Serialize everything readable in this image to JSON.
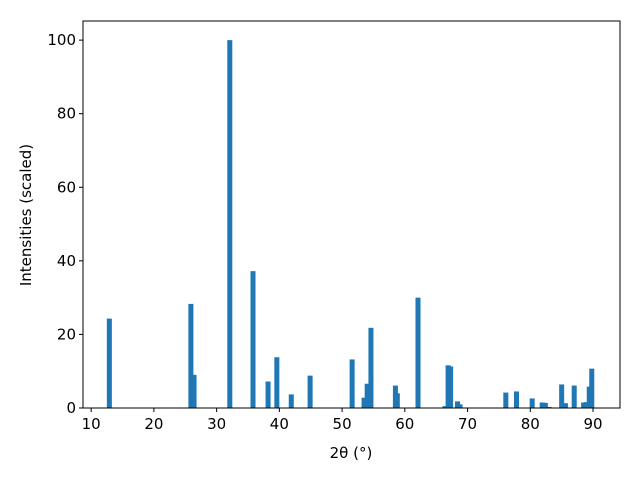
{
  "chart_data": {
    "type": "bar",
    "xlabel": "2θ (°)",
    "ylabel": "Intensities (scaled)",
    "x": [
      12.9,
      25.9,
      26.4,
      32.1,
      35.8,
      38.2,
      39.6,
      41.9,
      44.9,
      51.6,
      53.5,
      54.0,
      54.6,
      58.5,
      58.8,
      62.1,
      66.4,
      66.9,
      67.3,
      68.4,
      68.8,
      76.1,
      77.8,
      80.3,
      81.9,
      82.4,
      83.0,
      85.0,
      85.6,
      87.0,
      88.5,
      89.0,
      89.4,
      89.8
    ],
    "values": [
      24.3,
      28.3,
      9,
      100,
      37.2,
      7.2,
      13.8,
      3.7,
      8.8,
      13.2,
      2.8,
      6.6,
      21.8,
      6.1,
      4,
      30.0,
      0.5,
      11.6,
      11.3,
      1.8,
      1.0,
      4.2,
      4.5,
      2.6,
      1.5,
      1.4,
      0.3,
      6.4,
      1.3,
      6.1,
      1.5,
      1.6,
      5.8,
      10.7
    ],
    "color": "#1f77b4",
    "xlim": [
      8.7,
      94.3
    ],
    "xticks": [
      10,
      20,
      30,
      40,
      50,
      60,
      70,
      80,
      90
    ],
    "ylim": [
      0,
      105.2
    ],
    "yticks": [
      0,
      20,
      40,
      60,
      80,
      100
    ],
    "grid": false
  }
}
